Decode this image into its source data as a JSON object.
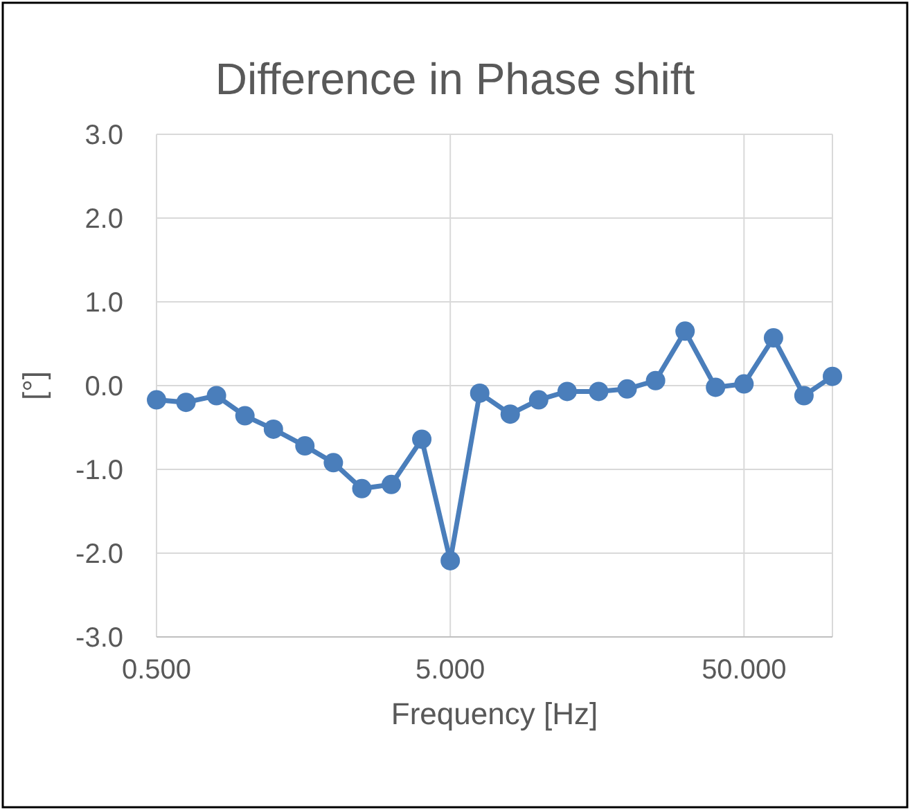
{
  "chart_data": {
    "type": "line",
    "title": "Difference in Phase shift",
    "xlabel": "Frequency [Hz]",
    "ylabel": "[°]",
    "x": [
      0.5,
      0.63,
      0.8,
      1,
      1.25,
      1.6,
      2,
      2.5,
      3.15,
      4,
      5,
      6.3,
      8,
      10,
      12.5,
      16,
      20,
      25,
      31.5,
      40,
      50,
      63,
      80,
      100
    ],
    "series": [
      {
        "color": "#4a7ebb",
        "values": [
          -0.17,
          -0.2,
          -0.12,
          -0.36,
          -0.52,
          -0.72,
          -0.92,
          -1.23,
          -1.18,
          -0.64,
          -2.09,
          -0.09,
          -0.34,
          -0.17,
          -0.07,
          -0.07,
          -0.04,
          0.06,
          0.65,
          -0.02,
          0.02,
          0.57,
          -0.12,
          0.11
        ]
      }
    ],
    "log": "x",
    "xlim": [
      0.5,
      100
    ],
    "xticks": [
      {
        "value": 0.5,
        "label": "0.500"
      },
      {
        "value": 5,
        "label": "5.000"
      },
      {
        "value": 50,
        "label": "50.000"
      }
    ],
    "ylim": [
      -3,
      3
    ],
    "yticks": [
      {
        "value": -3,
        "label": "-3.0"
      },
      {
        "value": -2,
        "label": "-2.0"
      },
      {
        "value": -1,
        "label": "-1.0"
      },
      {
        "value": 0,
        "label": "0.0"
      },
      {
        "value": 1,
        "label": "1.0"
      },
      {
        "value": 2,
        "label": "2.0"
      },
      {
        "value": 3,
        "label": "3.0"
      }
    ],
    "grid": true,
    "marker": "circle"
  }
}
